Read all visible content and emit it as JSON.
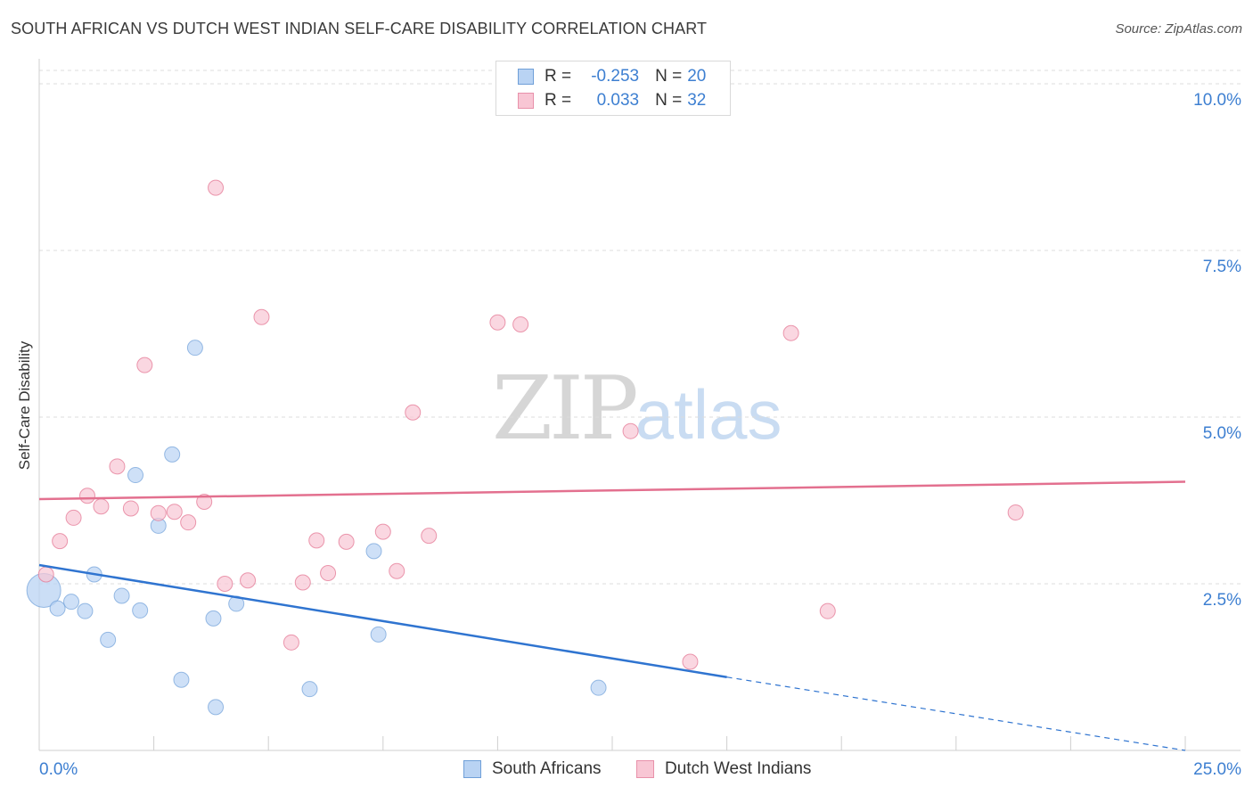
{
  "title": "SOUTH AFRICAN VS DUTCH WEST INDIAN SELF-CARE DISABILITY CORRELATION CHART",
  "source": "Source: ZipAtlas.com",
  "watermark": {
    "zip": "ZIP",
    "atlas": "atlas"
  },
  "legend": {
    "r_label": "R =",
    "n_label": "N =",
    "series": [
      {
        "name": "South Africans",
        "r": "-0.253",
        "n": "20",
        "fill": "#b9d3f3",
        "stroke": "#6f9fd8"
      },
      {
        "name": "Dutch West Indians",
        "r": "0.033",
        "n": "32",
        "fill": "#f8c6d4",
        "stroke": "#e891aa"
      }
    ]
  },
  "chart_data": {
    "type": "scatter",
    "title": "SOUTH AFRICAN VS DUTCH WEST INDIAN SELF-CARE DISABILITY CORRELATION CHART",
    "xlabel": "",
    "ylabel": "Self-Care Disability",
    "xlim": [
      0,
      25
    ],
    "ylim": [
      0,
      10.2
    ],
    "x_tick_labels": [
      "0.0%",
      "25.0%"
    ],
    "y_ticks": [
      2.5,
      5.0,
      7.5,
      10.0
    ],
    "y_tick_labels": [
      "2.5%",
      "5.0%",
      "7.5%",
      "10.0%"
    ],
    "grid": true,
    "series": [
      {
        "name": "South Africans",
        "color": "#6f9fd8",
        "fill": "#b9d3f3",
        "trend": {
          "x0": 0,
          "y0": 2.78,
          "x1": 15,
          "y1": 1.1,
          "dash_to_x": 25,
          "dash_to_y": 0.0
        },
        "points": [
          {
            "x": 0.1,
            "y": 2.4,
            "big": true
          },
          {
            "x": 0.4,
            "y": 2.13
          },
          {
            "x": 0.7,
            "y": 2.23
          },
          {
            "x": 1.0,
            "y": 2.09
          },
          {
            "x": 1.2,
            "y": 2.64
          },
          {
            "x": 1.5,
            "y": 1.66
          },
          {
            "x": 1.8,
            "y": 2.32
          },
          {
            "x": 2.1,
            "y": 4.13
          },
          {
            "x": 2.2,
            "y": 2.1
          },
          {
            "x": 2.6,
            "y": 3.37
          },
          {
            "x": 2.9,
            "y": 4.44
          },
          {
            "x": 3.1,
            "y": 1.06
          },
          {
            "x": 3.4,
            "y": 6.04
          },
          {
            "x": 3.8,
            "y": 1.98
          },
          {
            "x": 3.85,
            "y": 0.65
          },
          {
            "x": 4.3,
            "y": 2.2
          },
          {
            "x": 5.9,
            "y": 0.92
          },
          {
            "x": 7.3,
            "y": 2.99
          },
          {
            "x": 7.4,
            "y": 1.74
          },
          {
            "x": 12.2,
            "y": 0.94
          }
        ]
      },
      {
        "name": "Dutch West Indians",
        "color": "#e3708f",
        "fill": "#f8c6d4",
        "trend": {
          "x0": 0,
          "y0": 3.77,
          "x1": 25,
          "y1": 4.03
        },
        "points": [
          {
            "x": 0.15,
            "y": 2.64
          },
          {
            "x": 0.45,
            "y": 3.14
          },
          {
            "x": 0.75,
            "y": 3.49
          },
          {
            "x": 1.05,
            "y": 3.82
          },
          {
            "x": 1.35,
            "y": 3.66
          },
          {
            "x": 1.7,
            "y": 4.26
          },
          {
            "x": 2.0,
            "y": 3.63
          },
          {
            "x": 2.3,
            "y": 5.78
          },
          {
            "x": 2.6,
            "y": 3.56
          },
          {
            "x": 2.95,
            "y": 3.58
          },
          {
            "x": 3.25,
            "y": 3.42
          },
          {
            "x": 3.6,
            "y": 3.73
          },
          {
            "x": 3.85,
            "y": 8.44
          },
          {
            "x": 4.05,
            "y": 2.5
          },
          {
            "x": 4.55,
            "y": 2.55
          },
          {
            "x": 4.85,
            "y": 6.5
          },
          {
            "x": 5.5,
            "y": 1.62
          },
          {
            "x": 5.75,
            "y": 2.52
          },
          {
            "x": 6.05,
            "y": 3.15
          },
          {
            "x": 6.3,
            "y": 2.66
          },
          {
            "x": 6.7,
            "y": 3.13
          },
          {
            "x": 7.5,
            "y": 3.28
          },
          {
            "x": 7.8,
            "y": 2.69
          },
          {
            "x": 8.15,
            "y": 5.07
          },
          {
            "x": 8.5,
            "y": 3.22
          },
          {
            "x": 10.0,
            "y": 6.42
          },
          {
            "x": 10.5,
            "y": 6.39
          },
          {
            "x": 12.9,
            "y": 4.79
          },
          {
            "x": 14.2,
            "y": 1.33
          },
          {
            "x": 16.4,
            "y": 6.26
          },
          {
            "x": 17.2,
            "y": 2.09
          },
          {
            "x": 21.3,
            "y": 3.57
          }
        ]
      }
    ]
  }
}
